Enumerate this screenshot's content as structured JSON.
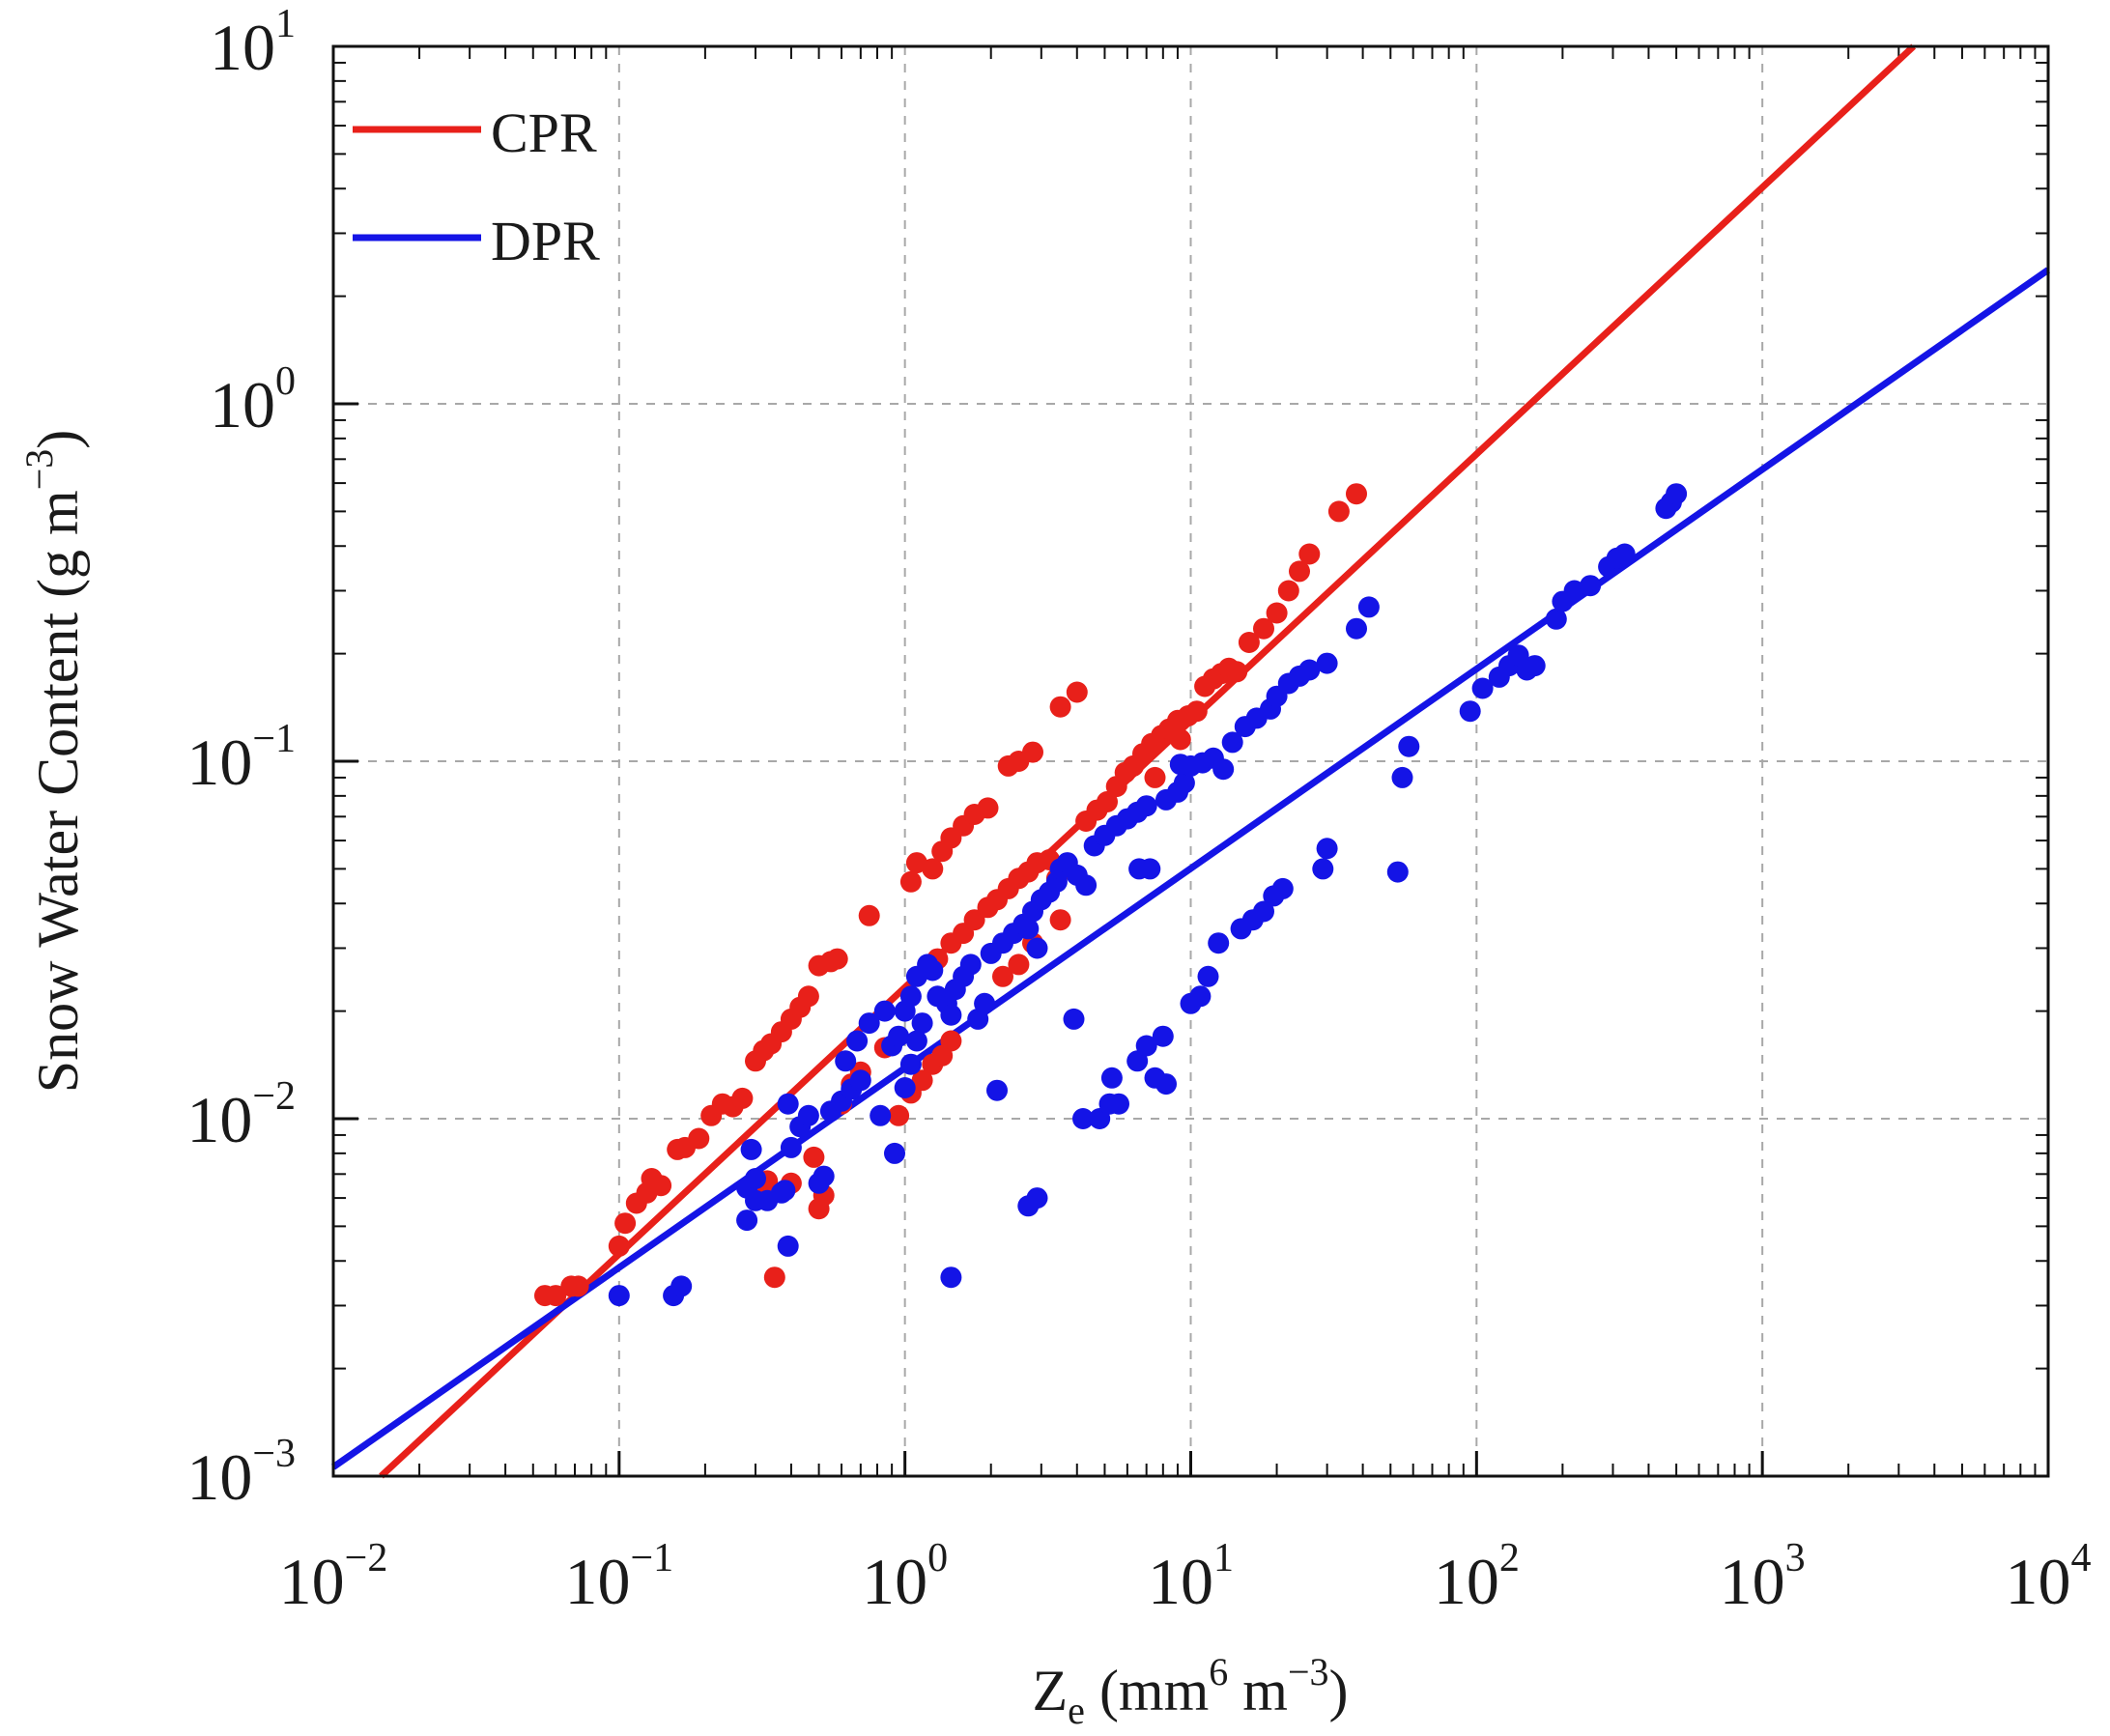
{
  "chart_data": {
    "type": "scatter",
    "title": "",
    "xscale": "log",
    "yscale": "log",
    "xlim": [
      0.01,
      10000
    ],
    "ylim": [
      0.001,
      10
    ],
    "grid": true,
    "legend_placement": "top-left",
    "xlabel": {
      "main": "Z",
      "sub": "e",
      "open": " (mm",
      "sup1": "6",
      "mid": " m",
      "sup2": "−3",
      "close": ")"
    },
    "ylabel": {
      "main": "Snow Water Content (g m",
      "sup": "−3",
      "close": ")"
    },
    "x_ticks": [
      {
        "value": 0.01,
        "base": "10",
        "exp": "−2"
      },
      {
        "value": 0.1,
        "base": "10",
        "exp": "−1"
      },
      {
        "value": 1,
        "base": "10",
        "exp": "0"
      },
      {
        "value": 10,
        "base": "10",
        "exp": "1"
      },
      {
        "value": 100,
        "base": "10",
        "exp": "2"
      },
      {
        "value": 1000,
        "base": "10",
        "exp": "3"
      },
      {
        "value": 10000,
        "base": "10",
        "exp": "4"
      }
    ],
    "y_ticks": [
      {
        "value": 0.001,
        "base": "10",
        "exp": "−3"
      },
      {
        "value": 0.01,
        "base": "10",
        "exp": "−2"
      },
      {
        "value": 0.1,
        "base": "10",
        "exp": "−1"
      },
      {
        "value": 1,
        "base": "10",
        "exp": "0"
      },
      {
        "value": 10,
        "base": "10",
        "exp": "1"
      }
    ],
    "fit_lines": [
      {
        "name": "CPR",
        "color": "#e8201a",
        "x": [
          0.0147,
          3380
        ],
        "y": [
          0.001,
          10
        ]
      },
      {
        "name": "DPR",
        "color": "#1414e6",
        "x": [
          0.01,
          10000
        ],
        "y": [
          0.00106,
          2.37
        ]
      }
    ],
    "series": [
      {
        "name": "CPR",
        "color": "#e8201a",
        "points": [
          [
            0.055,
            0.0032
          ],
          [
            0.06,
            0.0032
          ],
          [
            0.068,
            0.0034
          ],
          [
            0.072,
            0.0034
          ],
          [
            0.1,
            0.0044
          ],
          [
            0.105,
            0.0051
          ],
          [
            0.115,
            0.0058
          ],
          [
            0.125,
            0.0062
          ],
          [
            0.13,
            0.0068
          ],
          [
            0.14,
            0.0065
          ],
          [
            0.16,
            0.0082
          ],
          [
            0.17,
            0.0083
          ],
          [
            0.19,
            0.0088
          ],
          [
            0.21,
            0.0102
          ],
          [
            0.23,
            0.011
          ],
          [
            0.25,
            0.0108
          ],
          [
            0.27,
            0.0114
          ],
          [
            0.3,
            0.0145
          ],
          [
            0.32,
            0.0155
          ],
          [
            0.34,
            0.0162
          ],
          [
            0.37,
            0.0175
          ],
          [
            0.4,
            0.019
          ],
          [
            0.43,
            0.0205
          ],
          [
            0.46,
            0.022
          ],
          [
            0.5,
            0.0268
          ],
          [
            0.55,
            0.0275
          ],
          [
            0.58,
            0.028
          ],
          [
            0.75,
            0.037
          ],
          [
            0.35,
            0.0036
          ],
          [
            0.5,
            0.0056
          ],
          [
            0.52,
            0.0061
          ],
          [
            0.48,
            0.0078
          ],
          [
            0.4,
            0.0066
          ],
          [
            0.3,
            0.0062
          ],
          [
            0.33,
            0.0067
          ],
          [
            0.6,
            0.011
          ],
          [
            0.65,
            0.0125
          ],
          [
            0.7,
            0.0135
          ],
          [
            0.85,
            0.0158
          ],
          [
            0.95,
            0.0102
          ],
          [
            1.05,
            0.0118
          ],
          [
            1.15,
            0.0128
          ],
          [
            1.25,
            0.0142
          ],
          [
            1.35,
            0.015
          ],
          [
            1.45,
            0.0165
          ],
          [
            1.05,
            0.046
          ],
          [
            1.1,
            0.052
          ],
          [
            1.25,
            0.05
          ],
          [
            1.35,
            0.056
          ],
          [
            1.45,
            0.061
          ],
          [
            1.6,
            0.066
          ],
          [
            1.75,
            0.071
          ],
          [
            1.95,
            0.074
          ],
          [
            1.3,
            0.028
          ],
          [
            1.45,
            0.031
          ],
          [
            1.6,
            0.033
          ],
          [
            1.75,
            0.036
          ],
          [
            1.95,
            0.039
          ],
          [
            2.1,
            0.041
          ],
          [
            2.3,
            0.044
          ],
          [
            2.5,
            0.047
          ],
          [
            2.7,
            0.049
          ],
          [
            2.9,
            0.052
          ],
          [
            3.2,
            0.053
          ],
          [
            3.4,
            0.047
          ],
          [
            2.2,
            0.025
          ],
          [
            2.5,
            0.027
          ],
          [
            2.8,
            0.031
          ],
          [
            3.5,
            0.036
          ],
          [
            2.3,
            0.097
          ],
          [
            2.5,
            0.1
          ],
          [
            2.8,
            0.106
          ],
          [
            3.5,
            0.142
          ],
          [
            4.0,
            0.156
          ],
          [
            4.3,
            0.068
          ],
          [
            4.7,
            0.073
          ],
          [
            5.1,
            0.077
          ],
          [
            5.5,
            0.085
          ],
          [
            5.9,
            0.093
          ],
          [
            6.3,
            0.097
          ],
          [
            6.8,
            0.105
          ],
          [
            7.3,
            0.112
          ],
          [
            7.9,
            0.118
          ],
          [
            8.4,
            0.123
          ],
          [
            9.0,
            0.13
          ],
          [
            9.8,
            0.134
          ],
          [
            10.5,
            0.138
          ],
          [
            7.5,
            0.09
          ],
          [
            9.2,
            0.115
          ],
          [
            11.2,
            0.162
          ],
          [
            12.0,
            0.17
          ],
          [
            12.8,
            0.176
          ],
          [
            13.6,
            0.182
          ],
          [
            14.5,
            0.178
          ],
          [
            16.0,
            0.215
          ],
          [
            18.0,
            0.235
          ],
          [
            20.0,
            0.26
          ],
          [
            22.0,
            0.3
          ],
          [
            24.0,
            0.34
          ],
          [
            26.0,
            0.38
          ],
          [
            33.0,
            0.5
          ],
          [
            38.0,
            0.56
          ]
        ]
      },
      {
        "name": "DPR",
        "color": "#1414e6",
        "points": [
          [
            0.1,
            0.0032
          ],
          [
            0.155,
            0.0032
          ],
          [
            0.165,
            0.0034
          ],
          [
            0.28,
            0.0052
          ],
          [
            0.3,
            0.0059
          ],
          [
            0.28,
            0.0064
          ],
          [
            0.3,
            0.0068
          ],
          [
            0.29,
            0.0082
          ],
          [
            0.33,
            0.0059
          ],
          [
            0.37,
            0.0062
          ],
          [
            0.39,
            0.0044
          ],
          [
            0.38,
            0.0063
          ],
          [
            0.4,
            0.0083
          ],
          [
            0.43,
            0.0095
          ],
          [
            0.46,
            0.0102
          ],
          [
            0.39,
            0.011
          ],
          [
            0.5,
            0.0066
          ],
          [
            0.52,
            0.0069
          ],
          [
            0.55,
            0.0105
          ],
          [
            0.6,
            0.0112
          ],
          [
            0.65,
            0.0121
          ],
          [
            0.7,
            0.0128
          ],
          [
            0.62,
            0.0145
          ],
          [
            0.68,
            0.0165
          ],
          [
            0.75,
            0.0185
          ],
          [
            0.85,
            0.02
          ],
          [
            0.9,
            0.016
          ],
          [
            0.95,
            0.017
          ],
          [
            0.82,
            0.0102
          ],
          [
            0.92,
            0.008
          ],
          [
            1.0,
            0.0122
          ],
          [
            1.05,
            0.0142
          ],
          [
            1.1,
            0.0165
          ],
          [
            1.15,
            0.0185
          ],
          [
            1.0,
            0.02
          ],
          [
            1.05,
            0.022
          ],
          [
            1.1,
            0.025
          ],
          [
            1.2,
            0.027
          ],
          [
            1.25,
            0.026
          ],
          [
            1.3,
            0.022
          ],
          [
            1.4,
            0.021
          ],
          [
            1.45,
            0.0195
          ],
          [
            1.5,
            0.023
          ],
          [
            1.6,
            0.025
          ],
          [
            1.7,
            0.027
          ],
          [
            1.8,
            0.019
          ],
          [
            1.9,
            0.021
          ],
          [
            1.45,
            0.0036
          ],
          [
            2.1,
            0.012
          ],
          [
            2.0,
            0.029
          ],
          [
            2.2,
            0.031
          ],
          [
            2.4,
            0.033
          ],
          [
            2.6,
            0.035
          ],
          [
            2.8,
            0.038
          ],
          [
            3.0,
            0.041
          ],
          [
            3.2,
            0.043
          ],
          [
            3.4,
            0.046
          ],
          [
            2.7,
            0.034
          ],
          [
            2.9,
            0.03
          ],
          [
            3.5,
            0.05
          ],
          [
            3.7,
            0.052
          ],
          [
            4.0,
            0.048
          ],
          [
            4.3,
            0.045
          ],
          [
            2.7,
            0.0057
          ],
          [
            2.9,
            0.006
          ],
          [
            3.9,
            0.019
          ],
          [
            4.2,
            0.01
          ],
          [
            4.8,
            0.01
          ],
          [
            5.2,
            0.011
          ],
          [
            5.6,
            0.011
          ],
          [
            5.3,
            0.013
          ],
          [
            6.5,
            0.0145
          ],
          [
            7.0,
            0.016
          ],
          [
            7.5,
            0.013
          ],
          [
            8.2,
            0.0125
          ],
          [
            8.0,
            0.017
          ],
          [
            4.6,
            0.058
          ],
          [
            5.0,
            0.062
          ],
          [
            5.5,
            0.066
          ],
          [
            6.0,
            0.069
          ],
          [
            6.5,
            0.072
          ],
          [
            7.0,
            0.075
          ],
          [
            6.6,
            0.05
          ],
          [
            7.2,
            0.05
          ],
          [
            8.2,
            0.078
          ],
          [
            9.0,
            0.082
          ],
          [
            9.5,
            0.087
          ],
          [
            9.2,
            0.098
          ],
          [
            10.0,
            0.097
          ],
          [
            11.0,
            0.099
          ],
          [
            12.0,
            0.102
          ],
          [
            13.0,
            0.095
          ],
          [
            14.0,
            0.113
          ],
          [
            15.5,
            0.125
          ],
          [
            17.0,
            0.132
          ],
          [
            19.0,
            0.14
          ],
          [
            20.0,
            0.152
          ],
          [
            22.0,
            0.165
          ],
          [
            24.0,
            0.173
          ],
          [
            26.0,
            0.18
          ],
          [
            30.0,
            0.188
          ],
          [
            38.0,
            0.235
          ],
          [
            42.0,
            0.27
          ],
          [
            10.0,
            0.021
          ],
          [
            10.8,
            0.022
          ],
          [
            11.5,
            0.025
          ],
          [
            12.5,
            0.031
          ],
          [
            15.0,
            0.034
          ],
          [
            16.5,
            0.036
          ],
          [
            18.0,
            0.038
          ],
          [
            19.5,
            0.042
          ],
          [
            21.0,
            0.044
          ],
          [
            29.0,
            0.05
          ],
          [
            30.0,
            0.057
          ],
          [
            53.0,
            0.049
          ],
          [
            55.0,
            0.09
          ],
          [
            58.0,
            0.11
          ],
          [
            95.0,
            0.138
          ],
          [
            105.0,
            0.16
          ],
          [
            120.0,
            0.172
          ],
          [
            130.0,
            0.185
          ],
          [
            140.0,
            0.198
          ],
          [
            150.0,
            0.18
          ],
          [
            160.0,
            0.185
          ],
          [
            190.0,
            0.25
          ],
          [
            200.0,
            0.28
          ],
          [
            220.0,
            0.3
          ],
          [
            250.0,
            0.31
          ],
          [
            290.0,
            0.35
          ],
          [
            310.0,
            0.37
          ],
          [
            330.0,
            0.38
          ],
          [
            460.0,
            0.51
          ],
          [
            480.0,
            0.53
          ],
          [
            500.0,
            0.56
          ]
        ]
      }
    ]
  },
  "legend": [
    {
      "label": "CPR",
      "color": "#e8201a"
    },
    {
      "label": "DPR",
      "color": "#1414e6"
    }
  ]
}
